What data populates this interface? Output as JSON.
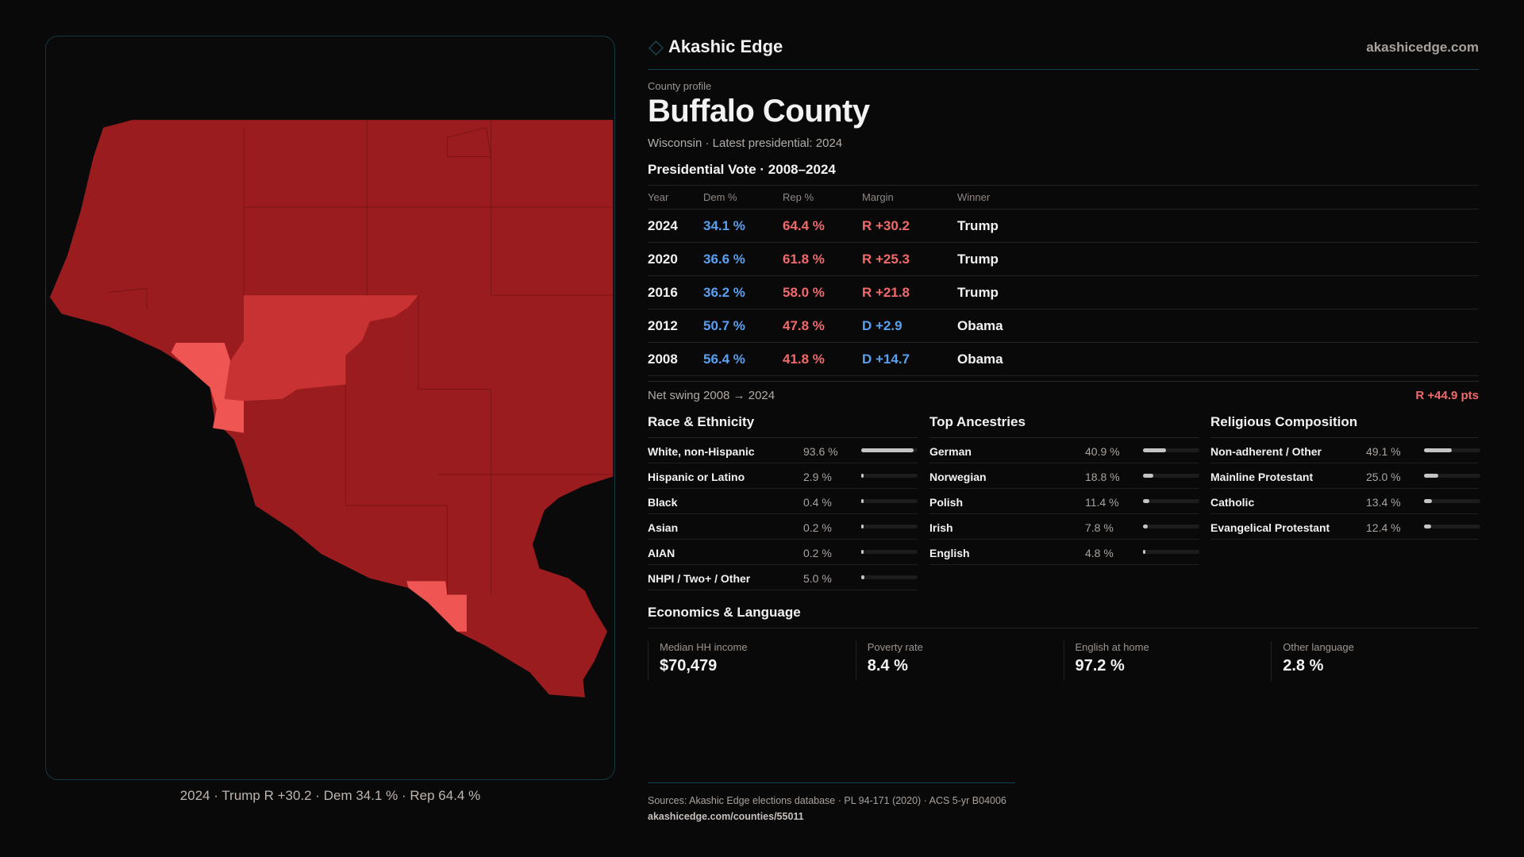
{
  "brand": {
    "name": "Akashic Edge",
    "site": "akashicedge.com"
  },
  "profile": {
    "kicker": "County profile",
    "title": "Buffalo County",
    "subtitle": "Wisconsin · Latest presidential: 2024"
  },
  "vote": {
    "heading": "Presidential Vote · 2008–2024",
    "columns": [
      "Year",
      "Dem %",
      "Rep %",
      "Margin",
      "Winner"
    ],
    "rows": [
      {
        "year": "2024",
        "dem": "34.1 %",
        "rep": "64.4 %",
        "margin": "R +30.2",
        "party": "R",
        "winner": "Trump"
      },
      {
        "year": "2020",
        "dem": "36.6 %",
        "rep": "61.8 %",
        "margin": "R +25.3",
        "party": "R",
        "winner": "Trump"
      },
      {
        "year": "2016",
        "dem": "36.2 %",
        "rep": "58.0 %",
        "margin": "R +21.8",
        "party": "R",
        "winner": "Trump"
      },
      {
        "year": "2012",
        "dem": "50.7 %",
        "rep": "47.8 %",
        "margin": "D +2.9",
        "party": "D",
        "winner": "Obama"
      },
      {
        "year": "2008",
        "dem": "56.4 %",
        "rep": "41.8 %",
        "margin": "D +14.7",
        "party": "D",
        "winner": "Obama"
      }
    ],
    "swing_label": "Net swing 2008 → 2024",
    "swing_value": "R +44.9 pts"
  },
  "race": {
    "heading": "Race & Ethnicity",
    "items": [
      {
        "label": "White, non-Hispanic",
        "value": "93.6 %",
        "pct": 93.6
      },
      {
        "label": "Hispanic or Latino",
        "value": "2.9 %",
        "pct": 2.9
      },
      {
        "label": "Black",
        "value": "0.4 %",
        "pct": 0.4
      },
      {
        "label": "Asian",
        "value": "0.2 %",
        "pct": 0.2
      },
      {
        "label": "AIAN",
        "value": "0.2 %",
        "pct": 0.2
      },
      {
        "label": "NHPI / Two+ / Other",
        "value": "5.0 %",
        "pct": 5.0
      }
    ]
  },
  "ancestry": {
    "heading": "Top Ancestries",
    "items": [
      {
        "label": "German",
        "value": "40.9 %",
        "pct": 40.9
      },
      {
        "label": "Norwegian",
        "value": "18.8 %",
        "pct": 18.8
      },
      {
        "label": "Polish",
        "value": "11.4 %",
        "pct": 11.4
      },
      {
        "label": "Irish",
        "value": "7.8 %",
        "pct": 7.8
      },
      {
        "label": "English",
        "value": "4.8 %",
        "pct": 4.8
      }
    ]
  },
  "religion": {
    "heading": "Religious Composition",
    "items": [
      {
        "label": "Non-adherent / Other",
        "value": "49.1 %",
        "pct": 49.1
      },
      {
        "label": "Mainline Protestant",
        "value": "25.0 %",
        "pct": 25.0
      },
      {
        "label": "Catholic",
        "value": "13.4 %",
        "pct": 13.4
      },
      {
        "label": "Evangelical Protestant",
        "value": "12.4 %",
        "pct": 12.4
      }
    ]
  },
  "economics": {
    "heading": "Economics & Language",
    "stats": [
      {
        "label": "Median HH income",
        "value": "$70,479"
      },
      {
        "label": "Poverty rate",
        "value": "8.4 %"
      },
      {
        "label": "English at home",
        "value": "97.2 %"
      },
      {
        "label": "Other language",
        "value": "2.8 %"
      }
    ]
  },
  "map": {
    "caption": "2024 · Trump R +30.2 · Dem 34.1 % · Rep 64.4 %",
    "colors": {
      "strong_rep": "#9b1c1f",
      "mid_rep": "#c93232",
      "light_rep": "#ef5552"
    }
  },
  "footer": {
    "sources": "Sources: Akashic Edge elections database · PL 94-171 (2020) · ACS 5-yr B04006",
    "url": "akashicedge.com/counties/55011"
  }
}
